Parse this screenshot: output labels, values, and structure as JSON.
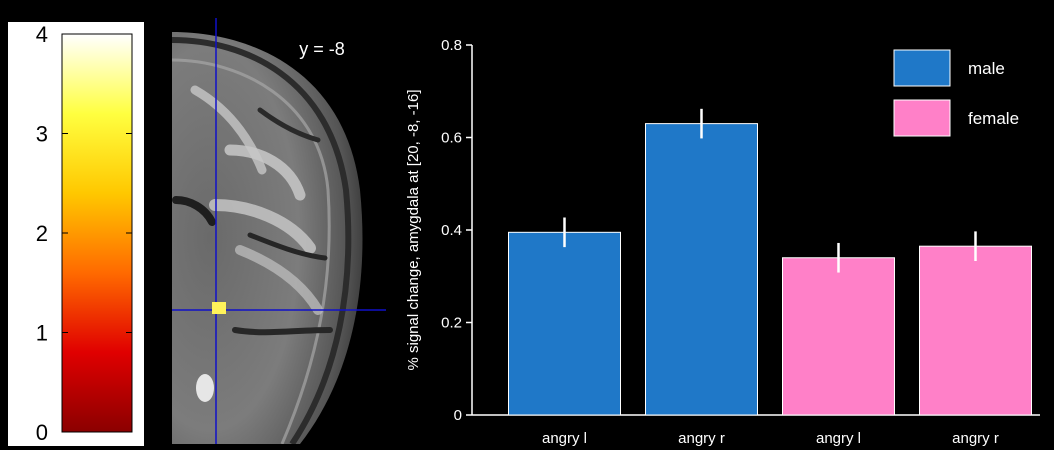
{
  "colorbar": {
    "ticks": [
      "4",
      "3",
      "2",
      "1",
      "0"
    ],
    "tick_values": [
      4,
      3,
      2,
      1,
      0
    ],
    "range": [
      0,
      4
    ],
    "colormap": [
      "#8b0000",
      "#e00000",
      "#ff6a00",
      "#ffc800",
      "#ffff40",
      "#ffffff"
    ]
  },
  "brain": {
    "slice_label": "y = -8",
    "crosshair_color": "#1010c8",
    "blob_color": "#fff35a"
  },
  "chart_data": {
    "type": "bar",
    "title": "",
    "xlabel": "",
    "ylabel": "% signal change, amygdala at [20, -8, -16]",
    "ylim": [
      0,
      0.8
    ],
    "yticks": [
      0,
      0.2,
      0.4,
      0.6,
      0.8
    ],
    "ytick_labels": [
      "0",
      "0.2",
      "0.4",
      "0.6",
      "0.8"
    ],
    "categories": [
      "angry l",
      "angry r",
      "angry l",
      "angry r"
    ],
    "values": [
      0.395,
      0.63,
      0.34,
      0.365
    ],
    "errors": [
      0.032,
      0.032,
      0.032,
      0.032
    ],
    "groups": [
      "male",
      "male",
      "female",
      "female"
    ],
    "legend": {
      "placement": "top-right",
      "items": [
        {
          "name": "male",
          "color": "#1f78c8"
        },
        {
          "name": "female",
          "color": "#ff80c8"
        }
      ]
    },
    "grid": false
  }
}
